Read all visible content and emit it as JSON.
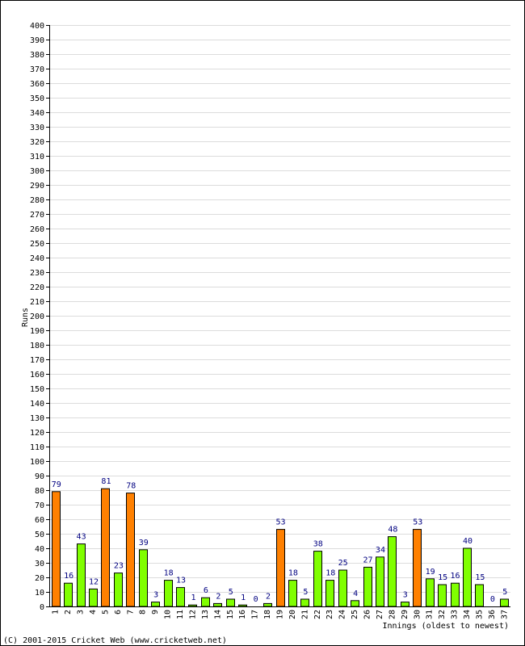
{
  "chart_data": {
    "type": "bar",
    "ylabel": "Runs",
    "xlabel": "Innings (oldest to newest)",
    "ylim": [
      0,
      400
    ],
    "ytick_step": 10,
    "grid": true,
    "categories": [
      "1",
      "2",
      "3",
      "4",
      "5",
      "6",
      "7",
      "8",
      "9",
      "10",
      "11",
      "12",
      "13",
      "14",
      "15",
      "16",
      "17",
      "18",
      "19",
      "20",
      "21",
      "22",
      "23",
      "24",
      "25",
      "26",
      "27",
      "28",
      "29",
      "30",
      "31",
      "32",
      "33",
      "34",
      "35",
      "36",
      "37"
    ],
    "values": [
      79,
      16,
      43,
      12,
      81,
      23,
      78,
      39,
      3,
      18,
      13,
      1,
      6,
      2,
      5,
      1,
      0,
      2,
      53,
      18,
      5,
      38,
      18,
      25,
      4,
      27,
      34,
      48,
      3,
      53,
      19,
      15,
      16,
      40,
      15,
      0,
      5
    ],
    "highlight_threshold": 50,
    "colors": {
      "bar_normal": "#80ff00",
      "bar_highlight": "#ff8000",
      "bar_outline": "#000000",
      "grid": "#dcdcdc",
      "data_label": "#000080"
    }
  },
  "footer": {
    "copyright": "(C) 2001-2015 Cricket Web (www.cricketweb.net)"
  }
}
